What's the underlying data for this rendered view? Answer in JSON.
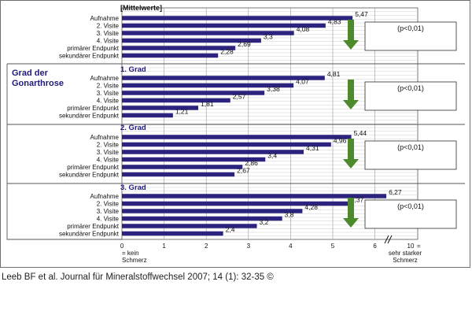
{
  "chart_data": {
    "type": "bar",
    "orientation": "horizontal",
    "header": "[Mittelwerte]",
    "side_label": [
      "Grad der",
      "Gonarthrose"
    ],
    "categories": [
      "Aufnahme",
      "2. Visite",
      "3. Visite",
      "4. Visite",
      "primärer Endpunkt",
      "sekundärer Endpunkt"
    ],
    "groups": [
      {
        "title": "",
        "values": [
          5.47,
          4.83,
          4.08,
          3.3,
          2.69,
          2.28
        ],
        "labels": [
          "5,47",
          "4,83",
          "4,08",
          "3,3",
          "2,69",
          "2,28"
        ],
        "pvalue": "(p<0,01)"
      },
      {
        "title": "1. Grad",
        "values": [
          4.81,
          4.07,
          3.38,
          2.57,
          1.81,
          1.21
        ],
        "labels": [
          "4,81",
          "4,07",
          "3,38",
          "2,57",
          "1,81",
          "1,21"
        ],
        "pvalue": "(p<0,01)"
      },
      {
        "title": "2. Grad",
        "values": [
          5.44,
          4.96,
          4.31,
          3.4,
          2.86,
          2.67
        ],
        "labels": [
          "5,44",
          "4,96",
          "4,31",
          "3,4",
          "2,86",
          "2,67"
        ],
        "pvalue": "(p<0,01)"
      },
      {
        "title": "3. Grad",
        "values": [
          6.27,
          5.37,
          4.28,
          3.8,
          3.2,
          2.4
        ],
        "labels": [
          "6,27",
          "5,37",
          "4,28",
          "3,8",
          "3,2",
          "2,4"
        ],
        "pvalue": "(p<0,01)"
      }
    ],
    "x_ticks": [
      "0",
      "1",
      "2",
      "3",
      "4",
      "5",
      "6",
      "10"
    ],
    "xlim": [
      0,
      6.5
    ],
    "axis_break_before": "10",
    "x_left_caption": [
      "= kein",
      "Schmerz"
    ],
    "x_right_caption": [
      "=",
      "sehr starker",
      "Schmerz"
    ],
    "bar_color": "#2b237e",
    "arrow_color": "#4c8a2c",
    "grid": true
  },
  "citation": "Leeb BF et al. Journal für Mineralstoffwechsel 2007; 14 (1): 32-35 ©"
}
